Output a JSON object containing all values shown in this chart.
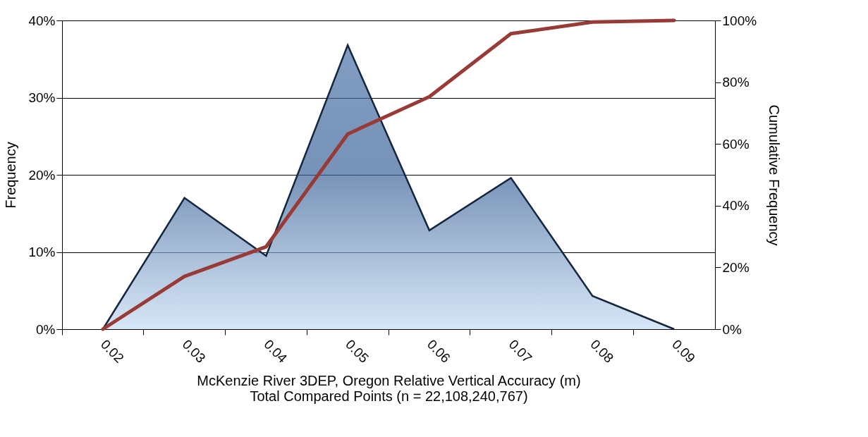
{
  "chart_data": {
    "type": "area",
    "categories": [
      "0.02",
      "0.03",
      "0.04",
      "0.05",
      "0.06",
      "0.07",
      "0.08",
      "0.09"
    ],
    "series": [
      {
        "color": "#4a72a6",
        "values": [
          0,
          17.0,
          9.5,
          36.8,
          12.8,
          19.6,
          4.3,
          0
        ]
      },
      {
        "type": "line",
        "axis": "y2",
        "color": "#983a35",
        "values": [
          0,
          17.1,
          26.7,
          63.2,
          75.3,
          95.7,
          99.5,
          100
        ]
      }
    ],
    "xlabel": "McKenzie River 3DEP, Oregon Relative Vertical Accuracy (m)",
    "annotations": [
      "Total Compared Points (n = 22,108,240,767)"
    ],
    "ylabel": "Frequency",
    "y2label": "Cumulative Frequency",
    "ylim": [
      0,
      40
    ],
    "yticks": [
      {
        "value": 0,
        "label": "0%"
      },
      {
        "value": 10,
        "label": "10%"
      },
      {
        "value": 20,
        "label": "20%"
      },
      {
        "value": 30,
        "label": "30%"
      },
      {
        "value": 40,
        "label": "40%"
      }
    ],
    "y2lim": [
      0,
      100
    ],
    "y2ticks": [
      {
        "value": 0,
        "label": "0%"
      },
      {
        "value": 20,
        "label": "20%"
      },
      {
        "value": 40,
        "label": "40%"
      },
      {
        "value": 60,
        "label": "60%"
      },
      {
        "value": 80,
        "label": "80%"
      },
      {
        "value": 100,
        "label": "100%"
      }
    ],
    "grid": "y"
  }
}
